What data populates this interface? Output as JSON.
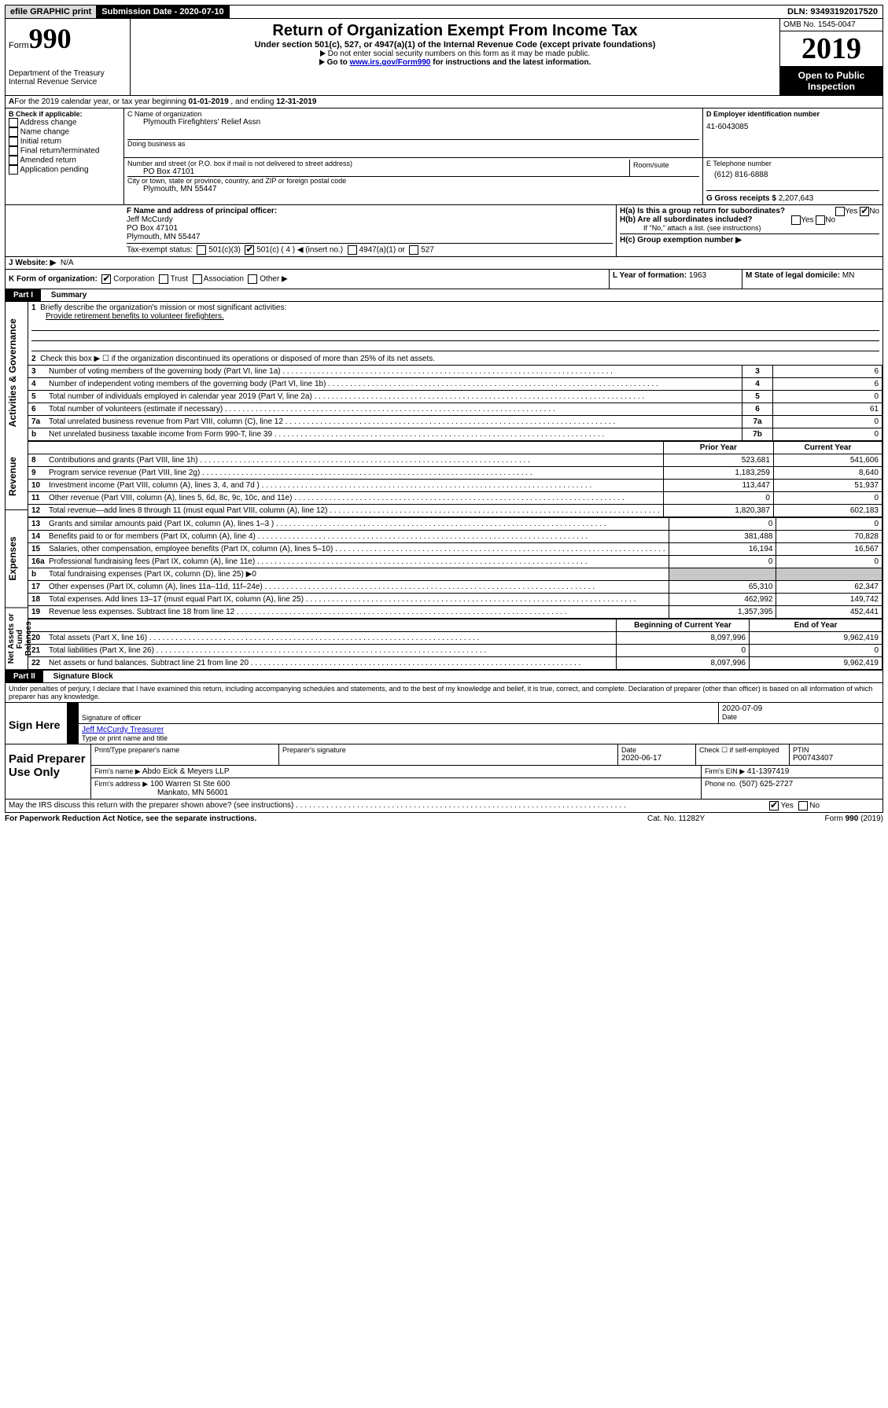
{
  "topbar": {
    "efile": "efile GRAPHIC print",
    "submission_label": "Submission Date - 2020-07-10",
    "dln_label": "DLN: 93493192017520"
  },
  "header": {
    "form_word": "Form",
    "form_no": "990",
    "dept": "Department of the Treasury",
    "irs": "Internal Revenue Service",
    "title": "Return of Organization Exempt From Income Tax",
    "sub1": "Under section 501(c), 527, or 4947(a)(1) of the Internal Revenue Code (except private foundations)",
    "sub2": "Do not enter social security numbers on this form as it may be made public.",
    "sub3_pre": "Go to ",
    "sub3_link": "www.irs.gov/Form990",
    "sub3_post": " for instructions and the latest information.",
    "omb": "OMB No. 1545-0047",
    "year": "2019",
    "open": "Open to Public Inspection"
  },
  "periodA": {
    "text_pre": "For the 2019 calendar year, or tax year beginning ",
    "begin": "01-01-2019",
    "mid": " , and ending ",
    "end": "12-31-2019"
  },
  "boxB": {
    "label": "B Check if applicable:",
    "o1": "Address change",
    "o2": "Name change",
    "o3": "Initial return",
    "o4": "Final return/terminated",
    "o5": "Amended return",
    "o6": "Application pending"
  },
  "boxC": {
    "name_label": "C Name of organization",
    "name": "Plymouth Firefighters' Relief Assn",
    "dba_label": "Doing business as",
    "street_label": "Number and street (or P.O. box if mail is not delivered to street address)",
    "room_label": "Room/suite",
    "street": "PO Box 47101",
    "city_label": "City or town, state or province, country, and ZIP or foreign postal code",
    "city": "Plymouth, MN  55447"
  },
  "boxD": {
    "label": "D Employer identification number",
    "ein": "41-6043085"
  },
  "boxE": {
    "label": "E Telephone number",
    "phone": "(612) 816-6888"
  },
  "boxG": {
    "label": "G Gross receipts $",
    "amount": "2,207,643"
  },
  "boxF": {
    "label": "F Name and address of principal officer:",
    "name": "Jeff McCurdy",
    "addr1": "PO Box 47101",
    "addr2": "Plymouth, MN  55447"
  },
  "boxH": {
    "ha": "H(a)  Is this a group return for subordinates?",
    "hb": "H(b)  Are all subordinates included?",
    "hb_note": "If \"No,\" attach a list. (see instructions)",
    "hc": "H(c)  Group exemption number ▶",
    "yes": "Yes",
    "no": "No"
  },
  "taxexempt": {
    "label": "Tax-exempt status:",
    "c3": "501(c)(3)",
    "c": "501(c) ( 4 ) ◀ (insert no.)",
    "a1": "4947(a)(1) or",
    "s527": "527"
  },
  "boxJ": {
    "label": "J    Website: ▶",
    "val": "N/A"
  },
  "boxK": {
    "label": "K Form of organization:",
    "corp": "Corporation",
    "trust": "Trust",
    "assoc": "Association",
    "other": "Other ▶"
  },
  "boxL": {
    "label": "L Year of formation:",
    "val": "1963"
  },
  "boxM": {
    "label": "M State of legal domicile:",
    "val": "MN"
  },
  "part1": {
    "label": "Part I",
    "title": "Summary",
    "vhead1": "Activities & Governance",
    "vhead2": "Revenue",
    "vhead3": "Expenses",
    "vhead4": "Net Assets or Fund Balances",
    "q1": "Briefly describe the organization's mission or most significant activities:",
    "mission": "Provide retirement benefits to volunteer firefighters.",
    "q2": "Check this box ▶ ☐  if the organization discontinued its operations or disposed of more than 25% of its net assets.",
    "rows": [
      {
        "n": "3",
        "t": "Number of voting members of the governing body (Part VI, line 1a)",
        "box": "3",
        "v": "6"
      },
      {
        "n": "4",
        "t": "Number of independent voting members of the governing body (Part VI, line 1b)",
        "box": "4",
        "v": "6"
      },
      {
        "n": "5",
        "t": "Total number of individuals employed in calendar year 2019 (Part V, line 2a)",
        "box": "5",
        "v": "0"
      },
      {
        "n": "6",
        "t": "Total number of volunteers (estimate if necessary)",
        "box": "6",
        "v": "61"
      },
      {
        "n": "7a",
        "t": "Total unrelated business revenue from Part VIII, column (C), line 12",
        "box": "7a",
        "v": "0"
      },
      {
        "n": "b",
        "t": "Net unrelated business taxable income from Form 990-T, line 39",
        "box": "7b",
        "v": "0"
      }
    ],
    "col_prior": "Prior Year",
    "col_curr": "Current Year",
    "rev": [
      {
        "n": "8",
        "t": "Contributions and grants (Part VIII, line 1h)",
        "p": "523,681",
        "c": "541,606"
      },
      {
        "n": "9",
        "t": "Program service revenue (Part VIII, line 2g)",
        "p": "1,183,259",
        "c": "8,640"
      },
      {
        "n": "10",
        "t": "Investment income (Part VIII, column (A), lines 3, 4, and 7d )",
        "p": "113,447",
        "c": "51,937"
      },
      {
        "n": "11",
        "t": "Other revenue (Part VIII, column (A), lines 5, 6d, 8c, 9c, 10c, and 11e)",
        "p": "0",
        "c": "0"
      },
      {
        "n": "12",
        "t": "Total revenue—add lines 8 through 11 (must equal Part VIII, column (A), line 12)",
        "p": "1,820,387",
        "c": "602,183"
      }
    ],
    "exp": [
      {
        "n": "13",
        "t": "Grants and similar amounts paid (Part IX, column (A), lines 1–3 )",
        "p": "0",
        "c": "0"
      },
      {
        "n": "14",
        "t": "Benefits paid to or for members (Part IX, column (A), line 4)",
        "p": "381,488",
        "c": "70,828"
      },
      {
        "n": "15",
        "t": "Salaries, other compensation, employee benefits (Part IX, column (A), lines 5–10)",
        "p": "16,194",
        "c": "16,567"
      },
      {
        "n": "16a",
        "t": "Professional fundraising fees (Part IX, column (A), line 11e)",
        "p": "0",
        "c": "0"
      },
      {
        "n": "b",
        "t": "Total fundraising expenses (Part IX, column (D), line 25) ▶0",
        "p": "",
        "c": "",
        "grey": true
      },
      {
        "n": "17",
        "t": "Other expenses (Part IX, column (A), lines 11a–11d, 11f–24e)",
        "p": "65,310",
        "c": "62,347"
      },
      {
        "n": "18",
        "t": "Total expenses. Add lines 13–17 (must equal Part IX, column (A), line 25)",
        "p": "462,992",
        "c": "149,742"
      },
      {
        "n": "19",
        "t": "Revenue less expenses. Subtract line 18 from line 12",
        "p": "1,357,395",
        "c": "452,441"
      }
    ],
    "col_beg": "Beginning of Current Year",
    "col_end": "End of Year",
    "net": [
      {
        "n": "20",
        "t": "Total assets (Part X, line 16)",
        "p": "8,097,996",
        "c": "9,962,419"
      },
      {
        "n": "21",
        "t": "Total liabilities (Part X, line 26)",
        "p": "0",
        "c": "0"
      },
      {
        "n": "22",
        "t": "Net assets or fund balances. Subtract line 21 from line 20",
        "p": "8,097,996",
        "c": "9,962,419"
      }
    ]
  },
  "part2": {
    "label": "Part II",
    "title": "Signature Block",
    "perjury": "Under penalties of perjury, I declare that I have examined this return, including accompanying schedules and statements, and to the best of my knowledge and belief, it is true, correct, and complete. Declaration of preparer (other than officer) is based on all information of which preparer has any knowledge.",
    "sign_here": "Sign Here",
    "sig_officer": "Signature of officer",
    "sig_date": "2020-07-09",
    "date_lbl": "Date",
    "officer_name": "Jeff McCurdy  Treasurer",
    "type_lbl": "Type or print name and title",
    "paid": "Paid Preparer Use Only",
    "prep_name_lbl": "Print/Type preparer's name",
    "prep_sig_lbl": "Preparer's signature",
    "prep_date_lbl": "Date",
    "prep_date": "2020-06-17",
    "self_emp": "Check ☐ if self-employed",
    "ptin_lbl": "PTIN",
    "ptin": "P00743407",
    "firm_name_lbl": "Firm's name    ▶",
    "firm_name": "Abdo Eick & Meyers LLP",
    "firm_ein_lbl": "Firm's EIN ▶",
    "firm_ein": "41-1397419",
    "firm_addr_lbl": "Firm's address ▶",
    "firm_addr1": "100 Warren St Ste 600",
    "firm_addr2": "Mankato, MN  56001",
    "firm_phone_lbl": "Phone no.",
    "firm_phone": "(507) 625-2727",
    "discuss": "May the IRS discuss this return with the preparer shown above? (see instructions)",
    "yes": "Yes",
    "no": "No"
  },
  "footer": {
    "pra": "For Paperwork Reduction Act Notice, see the separate instructions.",
    "cat": "Cat. No. 11282Y",
    "form": "Form 990 (2019)"
  }
}
